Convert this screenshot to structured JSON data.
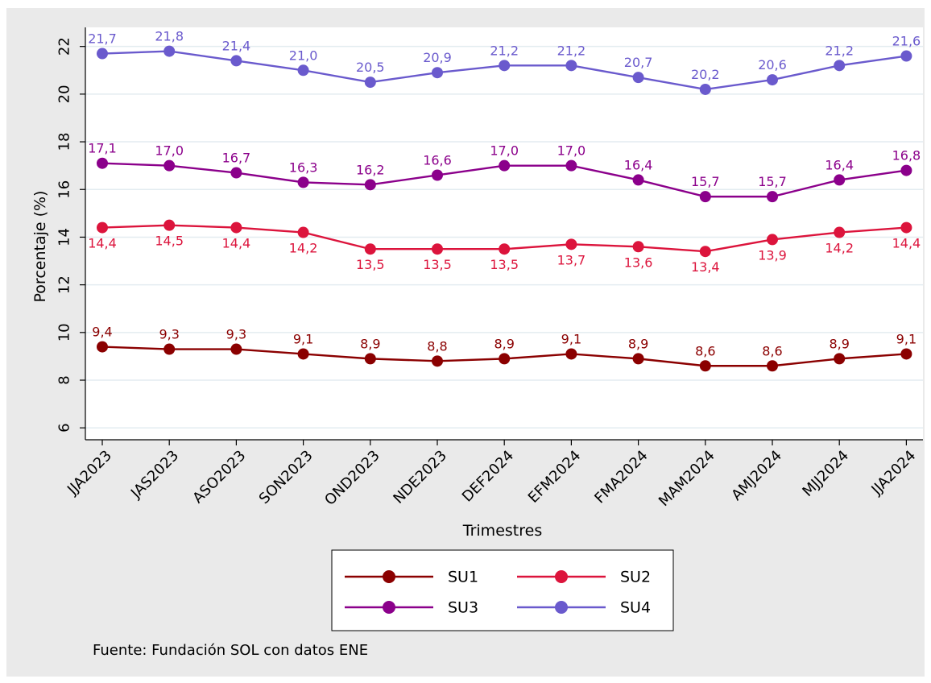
{
  "chart_data": {
    "type": "line",
    "xlabel": "Trimestres",
    "ylabel": "Porcentaje (%)",
    "ylim": [
      5.5,
      22.8
    ],
    "yticks": [
      6,
      8,
      10,
      12,
      14,
      16,
      18,
      20,
      22
    ],
    "grid": true,
    "legend_placement": "bottom",
    "categories": [
      "JJA2023",
      "JAS2023",
      "ASO2023",
      "SON2023",
      "OND2023",
      "NDE2023",
      "DEF2024",
      "EFM2024",
      "FMA2024",
      "MAM2024",
      "AMJ2024",
      "MJJ2024",
      "JJA2024"
    ],
    "series": [
      {
        "name": "SU1",
        "color": "#8b0000",
        "label_position": "above",
        "values": [
          9.4,
          9.3,
          9.3,
          9.1,
          8.9,
          8.8,
          8.9,
          9.1,
          8.9,
          8.6,
          8.6,
          8.9,
          9.1
        ],
        "labels": [
          "9,4",
          "9,3",
          "9,3",
          "9,1",
          "8,9",
          "8,8",
          "8,9",
          "9,1",
          "8,9",
          "8,6",
          "8,6",
          "8,9",
          "9,1"
        ]
      },
      {
        "name": "SU2",
        "color": "#dc143c",
        "label_position": "below",
        "values": [
          14.4,
          14.5,
          14.4,
          14.2,
          13.5,
          13.5,
          13.5,
          13.7,
          13.6,
          13.4,
          13.9,
          14.2,
          14.4
        ],
        "labels": [
          "14,4",
          "14,5",
          "14,4",
          "14,2",
          "13,5",
          "13,5",
          "13,5",
          "13,7",
          "13,6",
          "13,4",
          "13,9",
          "14,2",
          "14,4"
        ]
      },
      {
        "name": "SU3",
        "color": "#8b008b",
        "label_position": "above",
        "values": [
          17.1,
          17.0,
          16.7,
          16.3,
          16.2,
          16.6,
          17.0,
          17.0,
          16.4,
          15.7,
          15.7,
          16.4,
          16.8
        ],
        "labels": [
          "17,1",
          "17,0",
          "16,7",
          "16,3",
          "16,2",
          "16,6",
          "17,0",
          "17,0",
          "16,4",
          "15,7",
          "15,7",
          "16,4",
          "16,8"
        ]
      },
      {
        "name": "SU4",
        "color": "#6a5acd",
        "label_position": "above",
        "values": [
          21.7,
          21.8,
          21.4,
          21.0,
          20.5,
          20.9,
          21.2,
          21.2,
          20.7,
          20.2,
          20.6,
          21.2,
          21.6
        ],
        "labels": [
          "21,7",
          "21,8",
          "21,4",
          "21,0",
          "20,5",
          "20,9",
          "21,2",
          "21,2",
          "20,7",
          "20,2",
          "20,6",
          "21,2",
          "21,6"
        ]
      }
    ],
    "note": "Fuente: Fundación SOL con datos ENE"
  }
}
